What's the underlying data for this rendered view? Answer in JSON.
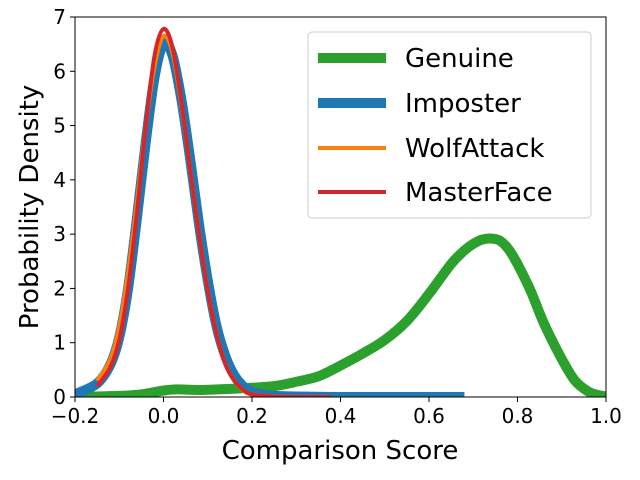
{
  "chart_data": {
    "type": "line",
    "title": "",
    "xlabel": "Comparison Score",
    "ylabel": "Probability Density",
    "xlim": [
      -0.2,
      1.0
    ],
    "ylim": [
      0,
      7
    ],
    "xticks": [
      -0.2,
      0.0,
      0.2,
      0.4,
      0.6,
      0.8,
      1.0
    ],
    "xtick_labels": [
      "−0.2",
      "0.0",
      "0.2",
      "0.4",
      "0.6",
      "0.8",
      "1.0"
    ],
    "yticks": [
      0,
      1,
      2,
      3,
      4,
      5,
      6,
      7
    ],
    "ytick_labels": [
      "0",
      "1",
      "2",
      "3",
      "4",
      "5",
      "6",
      "7"
    ],
    "grid": false,
    "legend_position": "top-right",
    "series": [
      {
        "name": "Genuine",
        "color": "#2ca02c",
        "width": "thick",
        "x": [
          -0.2,
          -0.1,
          -0.05,
          0.0,
          0.03,
          0.08,
          0.15,
          0.2,
          0.25,
          0.3,
          0.35,
          0.4,
          0.45,
          0.5,
          0.55,
          0.6,
          0.65,
          0.68,
          0.7,
          0.72,
          0.74,
          0.76,
          0.78,
          0.8,
          0.83,
          0.86,
          0.9,
          0.93,
          0.96,
          0.98,
          1.0
        ],
        "y": [
          0.0,
          0.02,
          0.05,
          0.12,
          0.14,
          0.13,
          0.15,
          0.17,
          0.2,
          0.28,
          0.38,
          0.58,
          0.8,
          1.05,
          1.4,
          1.9,
          2.45,
          2.7,
          2.82,
          2.9,
          2.92,
          2.88,
          2.72,
          2.45,
          1.95,
          1.35,
          0.7,
          0.3,
          0.1,
          0.04,
          0.01
        ]
      },
      {
        "name": "Imposter",
        "color": "#1f77b4",
        "width": "thick",
        "x": [
          -0.2,
          -0.15,
          -0.12,
          -0.1,
          -0.08,
          -0.06,
          -0.04,
          -0.02,
          0.0,
          0.02,
          0.04,
          0.06,
          0.08,
          0.1,
          0.12,
          0.14,
          0.16,
          0.18,
          0.2,
          0.22,
          0.25,
          0.3,
          0.4,
          0.5,
          0.6,
          0.68
        ],
        "y": [
          0.05,
          0.25,
          0.6,
          1.1,
          2.0,
          3.3,
          4.7,
          5.9,
          6.5,
          6.3,
          5.5,
          4.4,
          3.2,
          2.15,
          1.3,
          0.75,
          0.4,
          0.2,
          0.1,
          0.05,
          0.02,
          0.01,
          0.0,
          0.0,
          0.0,
          0.0
        ]
      },
      {
        "name": "WolfAttack",
        "color": "#ff7f0e",
        "width": "thin",
        "x": [
          -0.15,
          -0.12,
          -0.1,
          -0.08,
          -0.06,
          -0.04,
          -0.02,
          0.0,
          0.02,
          0.04,
          0.06,
          0.08,
          0.1,
          0.12,
          0.14,
          0.16,
          0.18,
          0.2,
          0.25,
          0.3,
          0.38
        ],
        "y": [
          0.3,
          0.7,
          1.3,
          2.3,
          3.6,
          5.0,
          6.1,
          6.65,
          6.35,
          5.4,
          4.2,
          3.0,
          1.95,
          1.15,
          0.6,
          0.3,
          0.12,
          0.05,
          0.01,
          0.0,
          0.0
        ]
      },
      {
        "name": "MasterFace",
        "color": "#d62728",
        "width": "thin",
        "x": [
          -0.15,
          -0.12,
          -0.1,
          -0.08,
          -0.06,
          -0.04,
          -0.02,
          0.0,
          0.02,
          0.04,
          0.06,
          0.08,
          0.1,
          0.12,
          0.14,
          0.16,
          0.18,
          0.2,
          0.25,
          0.3,
          0.38
        ],
        "y": [
          0.2,
          0.55,
          1.05,
          2.0,
          3.4,
          5.0,
          6.3,
          6.78,
          6.45,
          5.45,
          4.2,
          3.0,
          1.95,
          1.15,
          0.6,
          0.3,
          0.13,
          0.05,
          0.01,
          0.0,
          0.0
        ]
      }
    ]
  }
}
